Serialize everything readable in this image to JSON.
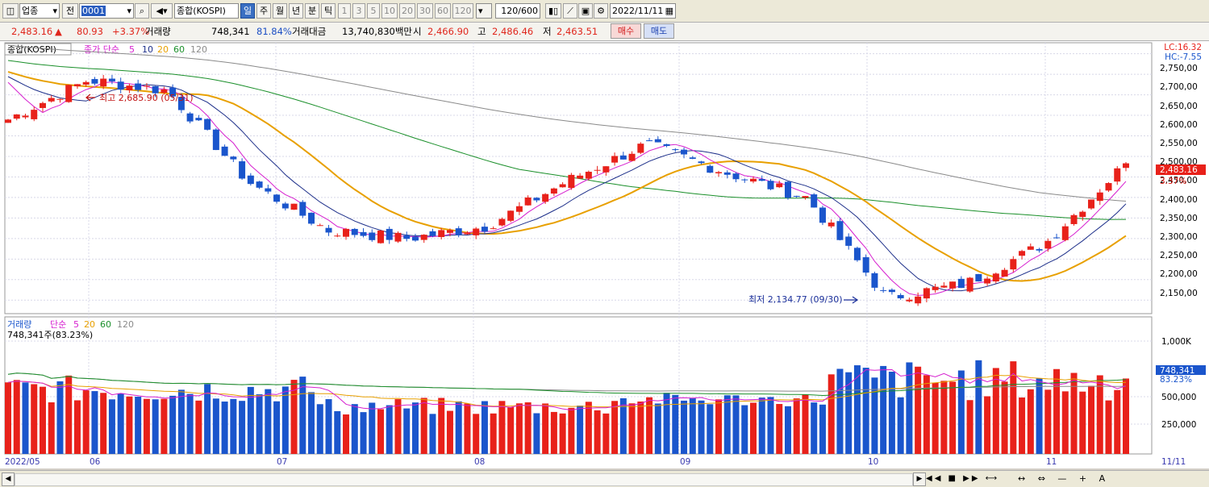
{
  "toolbar": {
    "market_label": "업종",
    "prev_label": "전",
    "code_value": "0001",
    "name_value": "종합(KOSPI)",
    "periods": [
      "일",
      "주",
      "월",
      "년",
      "분",
      "틱"
    ],
    "selected_period": "일",
    "intervals": [
      "1",
      "3",
      "5",
      "10",
      "20",
      "30",
      "60",
      "120"
    ],
    "count_value": "120/600",
    "date_value": "2022/11/11"
  },
  "quote": {
    "price": "2,483.16",
    "change": "80.93",
    "change_pct": "+3.37%",
    "volume_label": "거래량",
    "volume": "748,341",
    "volume_ratio": "81.84%",
    "amount_label": "거래대금",
    "amount": "13,740,830백만",
    "open_label": "시",
    "open": "2,466.90",
    "high_label": "고",
    "high": "2,486.46",
    "low_label": "저",
    "low": "2,463.51",
    "buy_label": "매수",
    "sell_label": "매도"
  },
  "chart": {
    "price_legend": {
      "name": "종합(KOSPI)",
      "ma_label": "종가 단순",
      "ma_periods": [
        "5",
        "10",
        "20",
        "60",
        "120"
      ]
    },
    "price_axis_ticks": [
      "2,750,00",
      "2,700,00",
      "2,650,00",
      "2,600,00",
      "2,550,00",
      "2,500,00",
      "2,450,00",
      "2,400,00",
      "2,350,00",
      "2,300,00",
      "2,250,00",
      "2,200,00",
      "2,150,00"
    ],
    "lc_label": "LC:16.32",
    "hc_label": "HC:-7.55",
    "last_price_tag": "2,483.16",
    "last_pct_tag": "3.37%",
    "high_annotation": "최고 2,685.90 (05/31)",
    "low_annotation": "최저 2,134.77 (09/30)",
    "volume_legend": {
      "name": "거래량",
      "ma_label": "단순",
      "ma_periods": [
        "5",
        "20",
        "60",
        "120"
      ],
      "current": "748,341주(83.23%)"
    },
    "volume_axis_ticks": [
      "1,000K",
      "500,000",
      "250,000"
    ],
    "last_volume_tag": "748,341",
    "last_volume_pct": "83.23%",
    "x_labels": [
      "2022/05",
      "06",
      "07",
      "08",
      "09",
      "10",
      "11",
      "11/11"
    ]
  },
  "colors": {
    "up": "#e8211a",
    "down": "#1a55cc",
    "ma5": "#d61fcf",
    "ma10": "#1d2f8a",
    "ma20": "#e8a000",
    "ma60": "#1a8f2a",
    "ma120": "#8a8a8a"
  },
  "chart_data": {
    "type": "candlestick",
    "period": "daily",
    "x_range": [
      "2022/05",
      "2022/11/11"
    ],
    "y_range_price": [
      2134.77,
      2750
    ],
    "price_waypoints": [
      {
        "date": "2022/05",
        "close": 2590
      },
      {
        "date": "2022/05/31",
        "close": 2685.9
      },
      {
        "date": "2022/06",
        "close": 2660
      },
      {
        "date": "2022/06 mid",
        "close": 2440
      },
      {
        "date": "2022/06 end",
        "close": 2320
      },
      {
        "date": "2022/07",
        "close": 2300
      },
      {
        "date": "2022/07 mid",
        "close": 2330
      },
      {
        "date": "2022/07 end",
        "close": 2440
      },
      {
        "date": "2022/08 mid",
        "close": 2530
      },
      {
        "date": "2022/08 end",
        "close": 2460
      },
      {
        "date": "2022/09 mid",
        "close": 2400
      },
      {
        "date": "2022/09/30",
        "close": 2155.49
      },
      {
        "date": "2022/10 mid",
        "close": 2190
      },
      {
        "date": "2022/10 end",
        "close": 2290
      },
      {
        "date": "2022/11/11",
        "open": 2466.9,
        "high": 2486.46,
        "low": 2463.51,
        "close": 2483.16
      }
    ],
    "annotations": [
      {
        "label": "최고",
        "value": 2685.9,
        "date": "05/31"
      },
      {
        "label": "최저",
        "value": 2134.77,
        "date": "09/30"
      }
    ],
    "last_volume": 748341,
    "moving_averages": [
      "5",
      "10",
      "20",
      "60",
      "120"
    ]
  }
}
